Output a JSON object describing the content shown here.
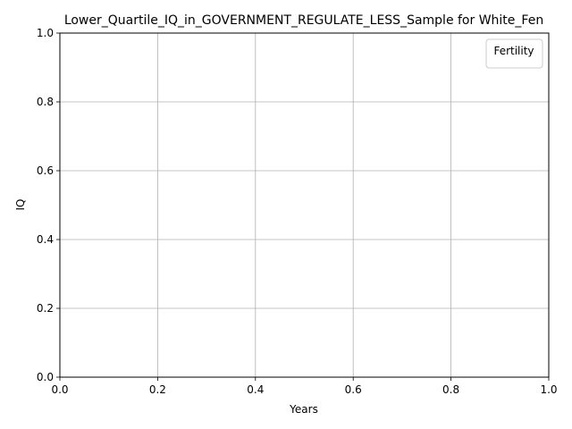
{
  "chart_data": {
    "type": "line",
    "title": "Lower_Quartile_IQ_in_GOVERNMENT_REGULATE_LESS_Sample for White_Fen",
    "xlabel": "Years",
    "ylabel": "IQ",
    "xlim": [
      0.0,
      1.0
    ],
    "ylim": [
      0.0,
      1.0
    ],
    "x_ticks": [
      "0.0",
      "0.2",
      "0.4",
      "0.6",
      "0.8",
      "1.0"
    ],
    "y_ticks": [
      "0.0",
      "0.2",
      "0.4",
      "0.6",
      "0.8",
      "1.0"
    ],
    "series": [],
    "grid": true,
    "legend": {
      "title": "Fertility",
      "placement": "top-right",
      "entries": []
    }
  },
  "colors": {
    "grid": "#b0b0b0",
    "axes": "#000000",
    "background": "#ffffff",
    "legend_border": "#cccccc"
  }
}
